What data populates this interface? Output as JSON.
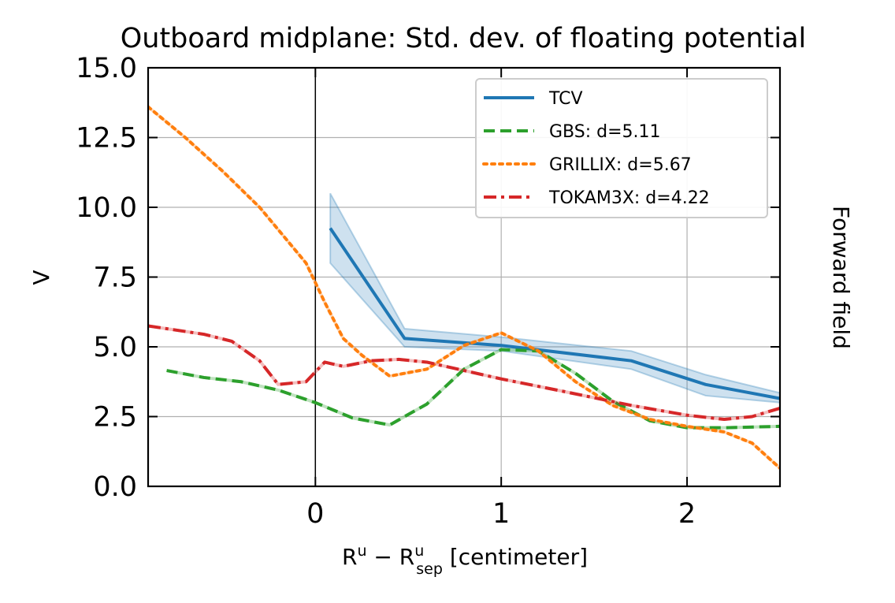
{
  "chart_data": {
    "type": "line",
    "title": "Outboard midplane: Std. dev. of floating potential",
    "xlabel": "R^u − R^u_sep [centimeter]",
    "xlabel_parts": {
      "base1": "R",
      "sup1": "u",
      "op": " − ",
      "base2": "R",
      "sup2": "u",
      "sub2": "sep",
      "unit": " [centimeter]"
    },
    "ylabel": "V",
    "right_label": "Forward field",
    "xlim": [
      -0.9,
      2.5
    ],
    "ylim": [
      0.0,
      15.0
    ],
    "xticks": [
      0,
      1,
      2
    ],
    "xtick_labels": [
      "0",
      "1",
      "2"
    ],
    "yticks": [
      0.0,
      2.5,
      5.0,
      7.5,
      10.0,
      12.5,
      15.0
    ],
    "ytick_labels": [
      "0.0",
      "2.5",
      "5.0",
      "7.5",
      "10.0",
      "12.5",
      "15.0"
    ],
    "grid": true,
    "vertical_line_x": 0,
    "legend_position": "top-right",
    "series": [
      {
        "name": "TCV",
        "color": "#1f77b4",
        "style": "solid",
        "x": [
          0.08,
          0.48,
          1.0,
          1.7,
          2.1,
          2.5
        ],
        "y": [
          9.25,
          5.3,
          5.05,
          4.5,
          3.65,
          3.15
        ],
        "band_lower": [
          8.0,
          5.0,
          4.85,
          4.2,
          3.25,
          3.0
        ],
        "band_upper": [
          10.5,
          5.65,
          5.35,
          4.85,
          4.0,
          3.35
        ]
      },
      {
        "name": "GBS: d=5.11",
        "color": "#2ca02c",
        "style": "dashed",
        "x": [
          -0.8,
          -0.6,
          -0.4,
          -0.2,
          0.0,
          0.2,
          0.4,
          0.6,
          0.8,
          1.0,
          1.2,
          1.4,
          1.6,
          1.8,
          2.0,
          2.2,
          2.5
        ],
        "y": [
          4.15,
          3.9,
          3.75,
          3.45,
          3.0,
          2.45,
          2.2,
          2.95,
          4.2,
          4.9,
          4.85,
          4.05,
          3.05,
          2.35,
          2.1,
          2.1,
          2.15
        ]
      },
      {
        "name": "GRILLIX: d=5.67",
        "color": "#ff7f0e",
        "style": "dotted",
        "x": [
          -0.9,
          -0.7,
          -0.5,
          -0.3,
          -0.05,
          0.05,
          0.15,
          0.25,
          0.4,
          0.6,
          0.8,
          1.0,
          1.2,
          1.4,
          1.6,
          1.8,
          2.0,
          2.2,
          2.35,
          2.5
        ],
        "y": [
          13.6,
          12.5,
          11.3,
          10.0,
          8.0,
          6.6,
          5.3,
          4.7,
          3.95,
          4.2,
          5.05,
          5.5,
          4.85,
          3.75,
          2.9,
          2.4,
          2.15,
          1.95,
          1.55,
          0.65
        ]
      },
      {
        "name": "TOKAM3X: d=4.22",
        "color": "#d62728",
        "style": "dashdot",
        "x": [
          -0.9,
          -0.6,
          -0.45,
          -0.3,
          -0.2,
          -0.05,
          0.05,
          0.15,
          0.3,
          0.45,
          0.6,
          0.8,
          1.0,
          1.3,
          1.7,
          2.0,
          2.2,
          2.35,
          2.5
        ],
        "y": [
          5.75,
          5.45,
          5.2,
          4.5,
          3.65,
          3.75,
          4.45,
          4.3,
          4.5,
          4.55,
          4.45,
          4.15,
          3.85,
          3.45,
          2.9,
          2.55,
          2.4,
          2.5,
          2.8
        ]
      }
    ]
  }
}
